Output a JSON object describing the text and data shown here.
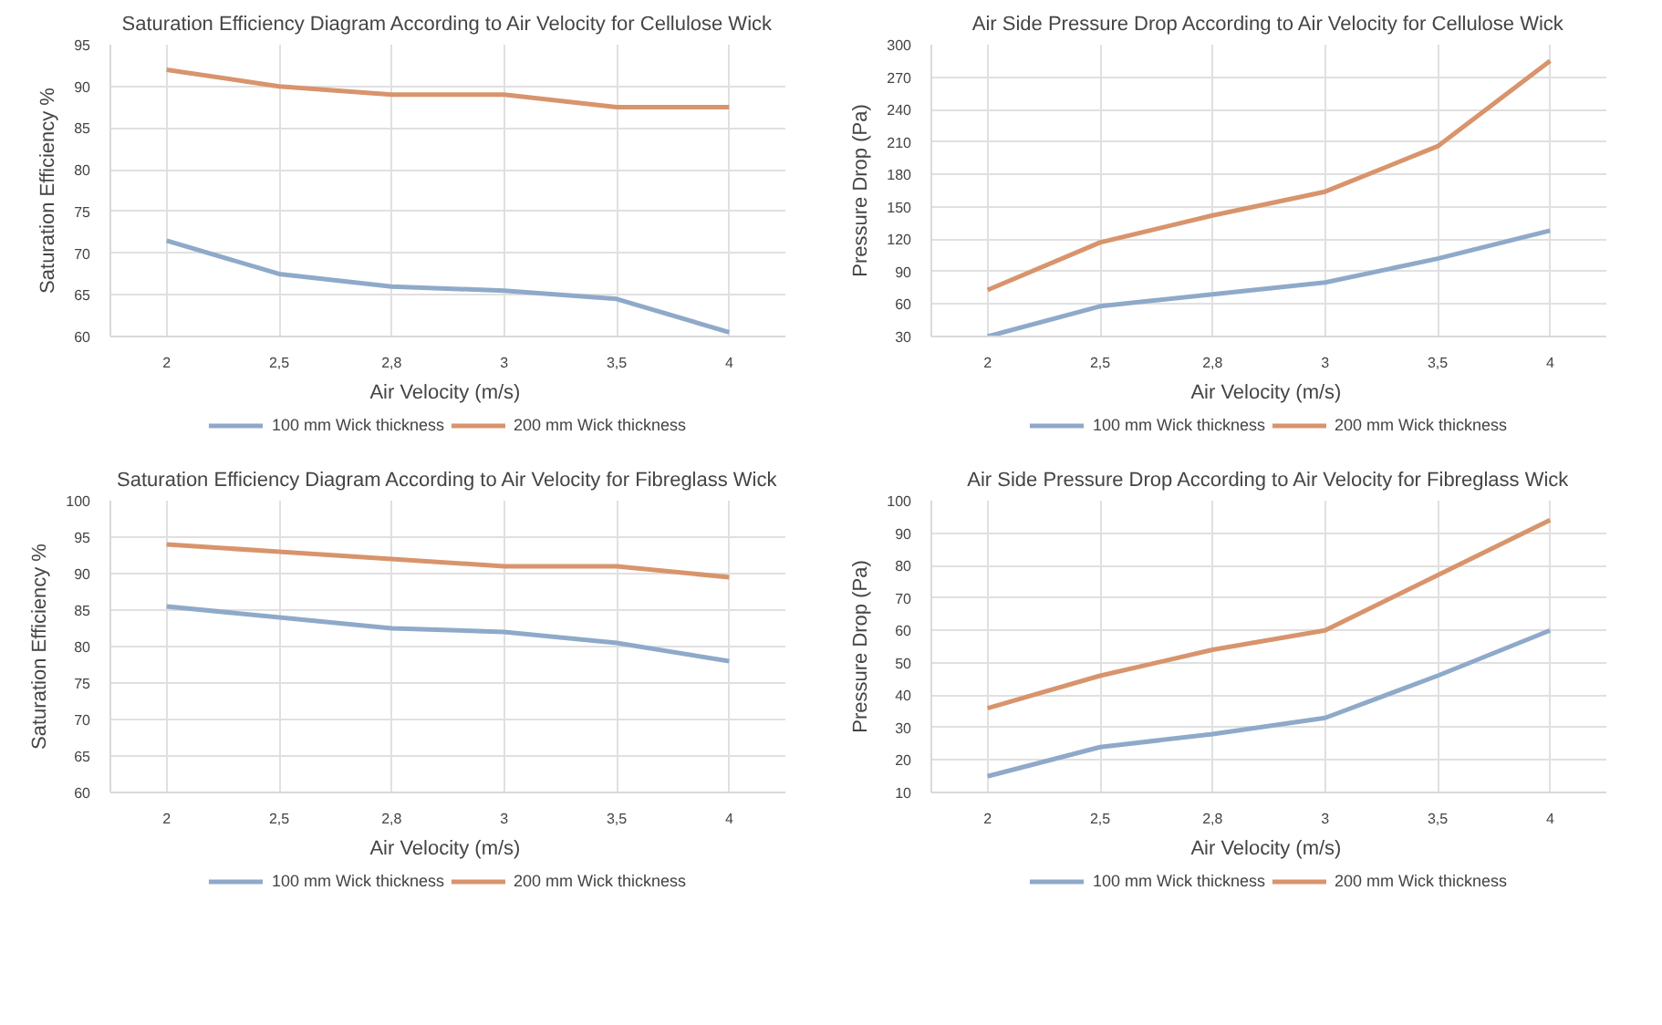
{
  "chart_data": [
    {
      "type": "line",
      "title": "Saturation Efficiency Diagram According to Air Velocity for Cellulose Wick",
      "xlabel": "Air Velocity  (m/s)",
      "ylabel": "Saturation Efficiency %",
      "categories": [
        "2",
        "2,5",
        "2,8",
        "3",
        "3,5",
        "4"
      ],
      "ylim": [
        60,
        95
      ],
      "yticks": [
        60,
        65,
        70,
        75,
        80,
        85,
        90,
        95
      ],
      "grid": true,
      "legend": "bottom",
      "marker": "none",
      "line_style": "solid",
      "series": [
        {
          "name": "100 mm Wick thickness",
          "color": "#8fa9c9",
          "values": [
            71.5,
            67.5,
            66,
            65.5,
            64.5,
            60.5
          ]
        },
        {
          "name": "200 mm Wick thickness",
          "color": "#d8946c",
          "values": [
            92,
            90,
            89,
            89,
            87.5,
            87.5
          ]
        }
      ]
    },
    {
      "type": "line",
      "title": "Air Side Pressure Drop According to Air Velocity for Cellulose Wick",
      "xlabel": "Air Velocity  (m/s)",
      "ylabel": "Pressure Drop (Pa)",
      "categories": [
        "2",
        "2,5",
        "2,8",
        "3",
        "3,5",
        "4"
      ],
      "ylim": [
        30,
        300
      ],
      "yticks": [
        30,
        60,
        90,
        120,
        150,
        180,
        210,
        240,
        270,
        300
      ],
      "grid": true,
      "legend": "bottom",
      "marker": "none",
      "line_style": "solid",
      "series": [
        {
          "name": "100 mm Wick thickness",
          "color": "#8fa9c9",
          "values": [
            30,
            58,
            69,
            80,
            102,
            128
          ]
        },
        {
          "name": "200 mm Wick thickness",
          "color": "#d8946c",
          "values": [
            73,
            117,
            142,
            164,
            206,
            285
          ]
        }
      ]
    },
    {
      "type": "line",
      "title": "Saturation Efficiency Diagram According to Air Velocity for Fibreglass Wick",
      "xlabel": "Air Velocity  (m/s)",
      "ylabel": "Saturation Efficiency %",
      "categories": [
        "2",
        "2,5",
        "2,8",
        "3",
        "3,5",
        "4"
      ],
      "ylim": [
        60,
        100
      ],
      "yticks": [
        60,
        65,
        70,
        75,
        80,
        85,
        90,
        95,
        100
      ],
      "grid": true,
      "legend": "bottom",
      "marker": "none",
      "line_style": "solid",
      "series": [
        {
          "name": "100 mm Wick thickness",
          "color": "#8fa9c9",
          "values": [
            85.5,
            84,
            82.5,
            82,
            80.5,
            78
          ]
        },
        {
          "name": "200 mm Wick thickness",
          "color": "#d8946c",
          "values": [
            94,
            93,
            92,
            91,
            91,
            89.5
          ]
        }
      ]
    },
    {
      "type": "line",
      "title": "Air Side Pressure Drop According to Air Velocity for Fibreglass Wick",
      "xlabel": "Air Velocity  (m/s)",
      "ylabel": "Pressure Drop (Pa)",
      "categories": [
        "2",
        "2,5",
        "2,8",
        "3",
        "3,5",
        "4"
      ],
      "ylim": [
        10,
        100
      ],
      "yticks": [
        10,
        20,
        30,
        40,
        50,
        60,
        70,
        80,
        90,
        100
      ],
      "grid": true,
      "legend": "bottom",
      "marker": "none",
      "line_style": "solid",
      "series": [
        {
          "name": "100 mm Wick thickness",
          "color": "#8fa9c9",
          "values": [
            15,
            24,
            28,
            33,
            46,
            60
          ]
        },
        {
          "name": "200 mm Wick thickness",
          "color": "#d8946c",
          "values": [
            36,
            46,
            54,
            60,
            77,
            94
          ]
        }
      ]
    }
  ]
}
